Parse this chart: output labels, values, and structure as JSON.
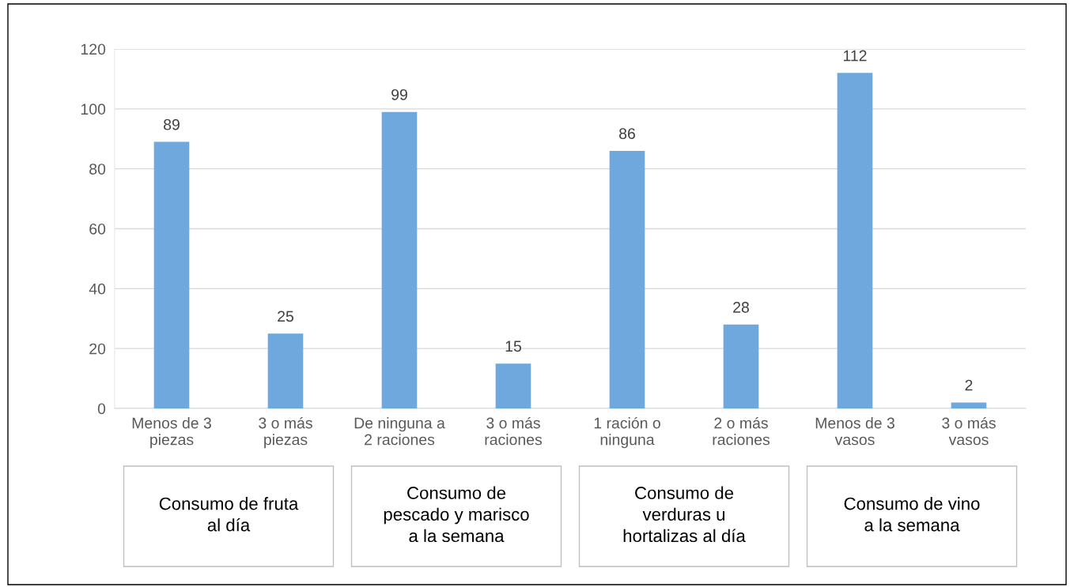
{
  "chart_data": {
    "type": "bar",
    "categories": [
      "Menos de 3\npiezas",
      "3 o más\npiezas",
      "De ninguna a\n2 raciones",
      "3 o más\nraciones",
      "1 ración o\nninguna",
      "2 o más\nraciones",
      "Menos de 3\nvasos",
      "3 o más\nvasos"
    ],
    "values": [
      89,
      25,
      99,
      15,
      86,
      28,
      112,
      2
    ],
    "color": "#6fa8dc",
    "ylim": [
      0,
      120
    ],
    "yticks": [
      0,
      20,
      40,
      60,
      80,
      100,
      120
    ],
    "grid": "y",
    "data_labels": true,
    "annotations": [
      "Consumo de fruta\nal día",
      "Consumo de\npescado y marisco\na la semana",
      "Consumo de\nverduras u\nhortalizas al día",
      "Consumo de vino\na la semana"
    ]
  }
}
